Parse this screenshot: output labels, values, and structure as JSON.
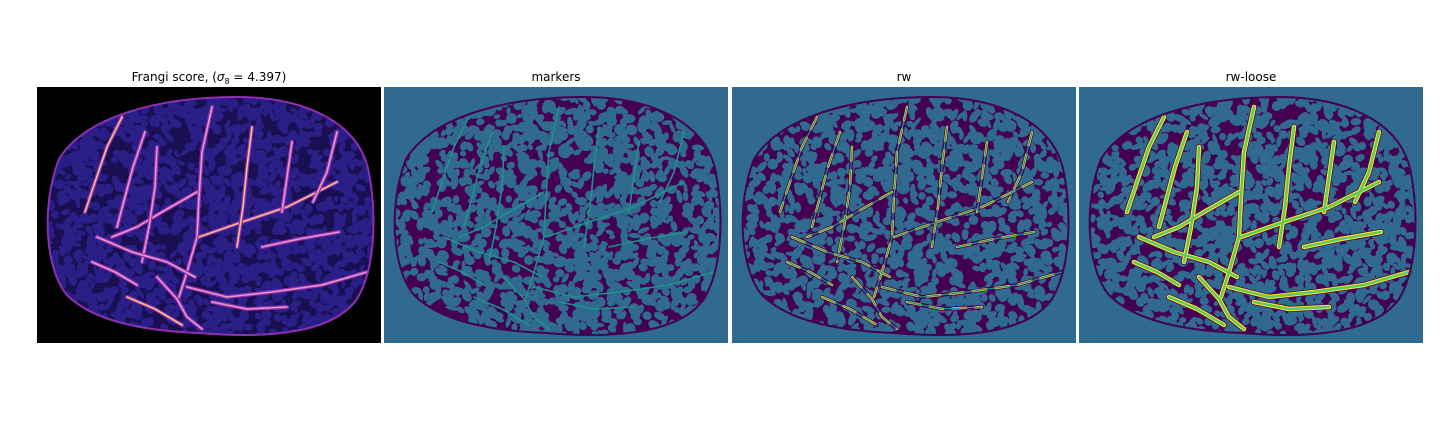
{
  "figure": {
    "panels": [
      {
        "id": "frangi",
        "title_prefix": "Frangi score, (",
        "sigma_symbol": "σ",
        "sigma_subscript": "8",
        "sigma_suffix": " = 4.397)"
      },
      {
        "id": "markers",
        "title": "markers"
      },
      {
        "id": "rw",
        "title": "rw"
      },
      {
        "id": "rw-loose",
        "title": "rw-loose"
      }
    ]
  },
  "colors": {
    "frangi_background": "#000000",
    "frangi_mottle": "#2a1f86",
    "frangi_vessel_dim": "#8e2fb2",
    "frangi_vessel_bright": "#f4a3c2",
    "frangi_vessel_hot": "#ffd27a",
    "label_background": "#306b8f",
    "label_region": "#440154",
    "label_vessel_teal": "#21918c",
    "label_vessel_green": "#5ec962",
    "label_vessel_yellow": "#fde725"
  }
}
